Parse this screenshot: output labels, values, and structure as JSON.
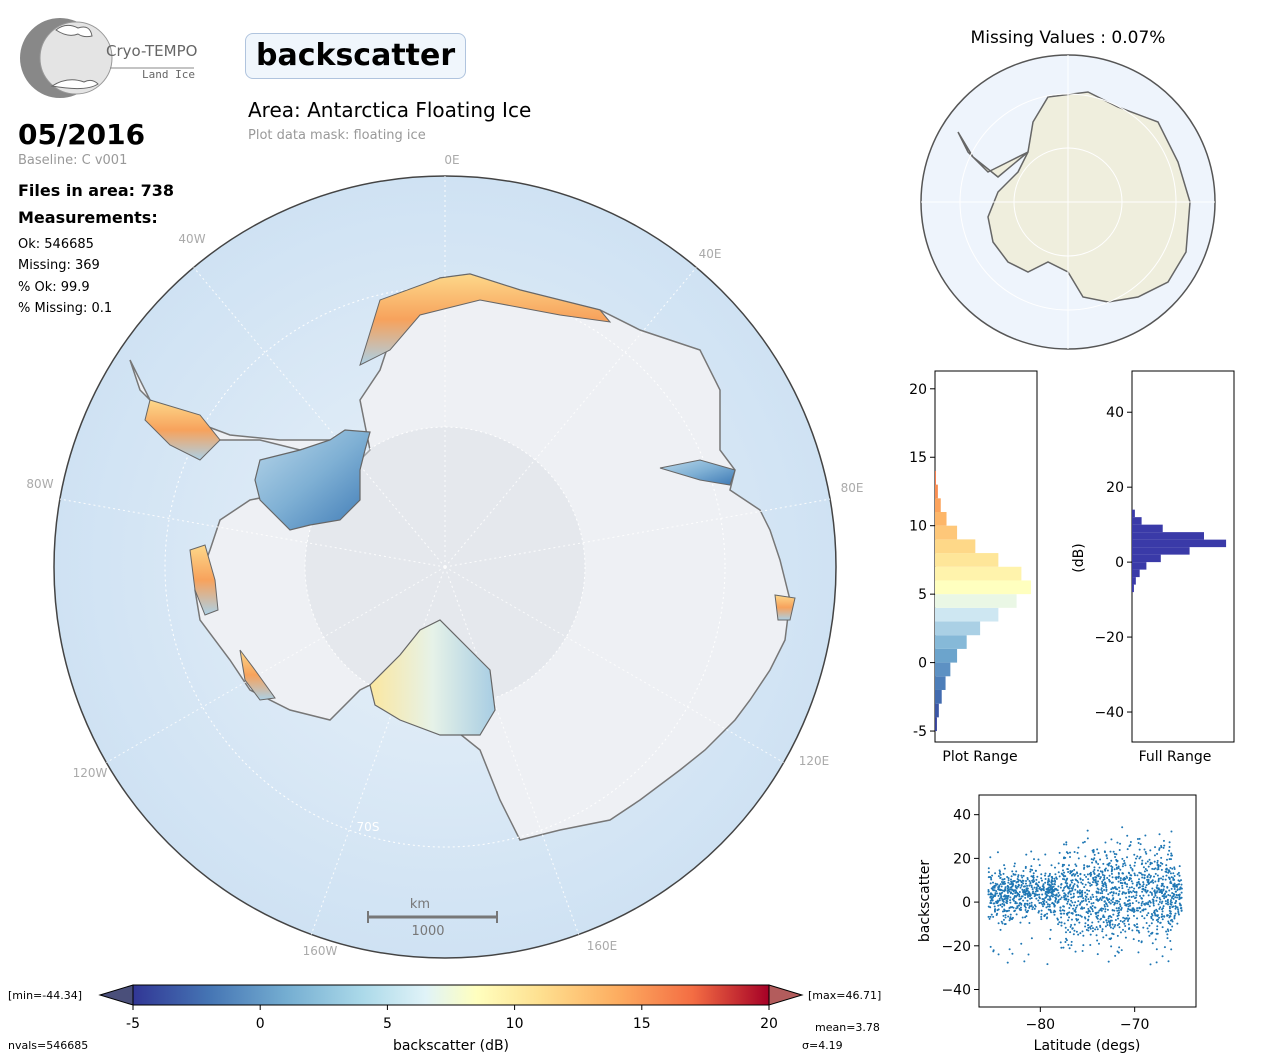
{
  "logo": {
    "line1": "Cryo-TEMPO",
    "line2": "Land Ice"
  },
  "parameter": "backscatter",
  "area_title": "Area: Antarctica Floating Ice",
  "mask_text": "Plot data mask: floating ice",
  "date": "05/2016",
  "baseline": "Baseline: C v001",
  "files": "Files in area: 738",
  "measurements_heading": "Measurements:",
  "stats": [
    "Ok: 546685",
    "Missing: 369",
    "% Ok: 99.9",
    "% Missing: 0.1"
  ],
  "missing_title": "Missing Values : 0.07%",
  "map": {
    "lon_labels": [
      "0E",
      "40E",
      "80E",
      "120E",
      "160E",
      "160W",
      "120W",
      "80W",
      "40W"
    ],
    "lat_label": "70S",
    "scale_unit": "km",
    "scale_value": "1000"
  },
  "colorbar": {
    "label": "backscatter (dB)",
    "ticks": [
      "-5",
      "0",
      "5",
      "10",
      "15",
      "20"
    ],
    "min_label": "[min=-44.34]",
    "max_label": "[max=46.71]",
    "nvals": "nvals=546685",
    "mean": "mean=3.78",
    "sigma": "σ=4.19",
    "range": [
      -5,
      20
    ]
  },
  "chart_data": [
    {
      "type": "bar",
      "name": "Plot Range histogram",
      "xlabel": "Plot Range",
      "ylim": [
        -5.8,
        21.3
      ],
      "yticks": [
        "-5",
        "0",
        "5",
        "10",
        "15",
        "20"
      ],
      "bins_y": [
        -5,
        -4,
        -3,
        -2,
        -1,
        0,
        1,
        2,
        3,
        4,
        5,
        6,
        7,
        8,
        9,
        10,
        11,
        12,
        13
      ],
      "counts_rel": [
        0.02,
        0.04,
        0.07,
        0.11,
        0.16,
        0.23,
        0.33,
        0.47,
        0.66,
        0.85,
        1.0,
        0.9,
        0.66,
        0.42,
        0.23,
        0.12,
        0.06,
        0.03,
        0.01
      ]
    },
    {
      "type": "bar",
      "name": "Full Range histogram",
      "xlabel": "Full Range",
      "ylabel": "(dB)",
      "ylim": [
        -48,
        51
      ],
      "yticks": [
        "−40",
        "−20",
        "0",
        "20",
        "40"
      ],
      "bins_y": [
        -8,
        -6,
        -4,
        -2,
        0,
        2,
        4,
        6,
        8,
        10,
        12
      ],
      "counts_rel": [
        0.02,
        0.04,
        0.08,
        0.15,
        0.3,
        0.6,
        0.98,
        0.75,
        0.32,
        0.1,
        0.03
      ]
    },
    {
      "type": "scatter",
      "name": "backscatter vs latitude",
      "xlabel": "Latitude (degs)",
      "ylabel": "backscatter",
      "xlim": [
        -86.5,
        -63.5
      ],
      "ylim": [
        -48,
        49
      ],
      "xticks": [
        "−80",
        "−70"
      ],
      "yticks": [
        "−40",
        "−20",
        "0",
        "20",
        "40"
      ]
    }
  ]
}
